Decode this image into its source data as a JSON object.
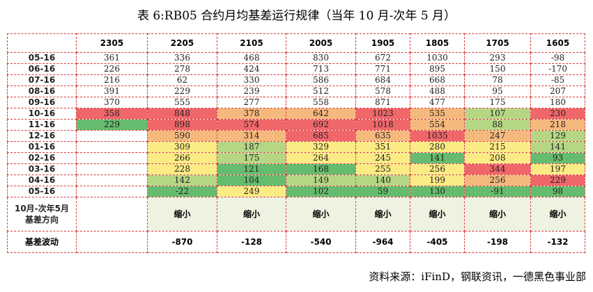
{
  "title": "表 6:RB05 合约月均基差运行规律（当年 10 月-次年 5 月）",
  "source": "资料来源：iFinD，钢联资讯，一德黑色事业部",
  "colors": {
    "red": "#f0676a",
    "orange": "#f6b97d",
    "yellow": "#faeb84",
    "lightgreen": "#b5d784",
    "green": "#66bc6e",
    "direction_bg": "#edf2e1",
    "border": "#d83a3a"
  },
  "columns": [
    "2305",
    "2205",
    "2105",
    "2005",
    "1905",
    "1805",
    "1705",
    "1605"
  ],
  "rows": [
    {
      "label": "05-16",
      "cells": [
        {
          "v": "361",
          "c": ""
        },
        {
          "v": "336",
          "c": ""
        },
        {
          "v": "468",
          "c": ""
        },
        {
          "v": "830",
          "c": ""
        },
        {
          "v": "672",
          "c": ""
        },
        {
          "v": "1030",
          "c": ""
        },
        {
          "v": "293",
          "c": ""
        },
        {
          "v": "-98",
          "c": ""
        }
      ]
    },
    {
      "label": "06-16",
      "cells": [
        {
          "v": "226",
          "c": ""
        },
        {
          "v": "278",
          "c": ""
        },
        {
          "v": "424",
          "c": ""
        },
        {
          "v": "713",
          "c": ""
        },
        {
          "v": "771",
          "c": ""
        },
        {
          "v": "895",
          "c": ""
        },
        {
          "v": "150",
          "c": ""
        },
        {
          "v": "-170",
          "c": ""
        }
      ]
    },
    {
      "label": "07-16",
      "cells": [
        {
          "v": "216",
          "c": ""
        },
        {
          "v": "62",
          "c": ""
        },
        {
          "v": "330",
          "c": ""
        },
        {
          "v": "586",
          "c": ""
        },
        {
          "v": "684",
          "c": ""
        },
        {
          "v": "668",
          "c": ""
        },
        {
          "v": "78",
          "c": ""
        },
        {
          "v": "-85",
          "c": ""
        }
      ]
    },
    {
      "label": "08-16",
      "cells": [
        {
          "v": "391",
          "c": ""
        },
        {
          "v": "229",
          "c": ""
        },
        {
          "v": "239",
          "c": ""
        },
        {
          "v": "512",
          "c": ""
        },
        {
          "v": "578",
          "c": ""
        },
        {
          "v": "488",
          "c": ""
        },
        {
          "v": "95",
          "c": ""
        },
        {
          "v": "207",
          "c": ""
        }
      ]
    },
    {
      "label": "09-16",
      "cells": [
        {
          "v": "370",
          "c": ""
        },
        {
          "v": "555",
          "c": ""
        },
        {
          "v": "277",
          "c": ""
        },
        {
          "v": "558",
          "c": ""
        },
        {
          "v": "871",
          "c": ""
        },
        {
          "v": "477",
          "c": ""
        },
        {
          "v": "175",
          "c": ""
        },
        {
          "v": "180",
          "c": ""
        }
      ]
    },
    {
      "label": "10-16",
      "cells": [
        {
          "v": "358",
          "c": "red"
        },
        {
          "v": "848",
          "c": "red"
        },
        {
          "v": "378",
          "c": "orange"
        },
        {
          "v": "642",
          "c": "orange"
        },
        {
          "v": "1023",
          "c": "red"
        },
        {
          "v": "535",
          "c": "orange"
        },
        {
          "v": "107",
          "c": "lightgreen"
        },
        {
          "v": "230",
          "c": "red"
        }
      ]
    },
    {
      "label": "11-16",
      "cells": [
        {
          "v": "229",
          "c": "green"
        },
        {
          "v": "898",
          "c": "red"
        },
        {
          "v": "574",
          "c": "red"
        },
        {
          "v": "692",
          "c": "red"
        },
        {
          "v": "1018",
          "c": "red"
        },
        {
          "v": "554",
          "c": "orange"
        },
        {
          "v": "88",
          "c": "lightgreen"
        },
        {
          "v": "218",
          "c": "orange"
        }
      ]
    },
    {
      "label": "12-16",
      "cells": [
        {
          "v": "",
          "c": ""
        },
        {
          "v": "590",
          "c": "orange"
        },
        {
          "v": "314",
          "c": "orange"
        },
        {
          "v": "685",
          "c": "red"
        },
        {
          "v": "635",
          "c": "orange"
        },
        {
          "v": "1035",
          "c": "red"
        },
        {
          "v": "247",
          "c": "orange"
        },
        {
          "v": "129",
          "c": "lightgreen"
        }
      ]
    },
    {
      "label": "01-16",
      "cells": [
        {
          "v": "",
          "c": ""
        },
        {
          "v": "309",
          "c": "yellow"
        },
        {
          "v": "187",
          "c": "lightgreen"
        },
        {
          "v": "329",
          "c": "yellow"
        },
        {
          "v": "351",
          "c": "yellow"
        },
        {
          "v": "280",
          "c": "yellow"
        },
        {
          "v": "215",
          "c": "yellow"
        },
        {
          "v": "141",
          "c": "lightgreen"
        }
      ]
    },
    {
      "label": "02-16",
      "cells": [
        {
          "v": "",
          "c": ""
        },
        {
          "v": "266",
          "c": "yellow"
        },
        {
          "v": "175",
          "c": "lightgreen"
        },
        {
          "v": "264",
          "c": "yellow"
        },
        {
          "v": "245",
          "c": "yellow"
        },
        {
          "v": "141",
          "c": "green"
        },
        {
          "v": "208",
          "c": "yellow"
        },
        {
          "v": "93",
          "c": "green"
        }
      ]
    },
    {
      "label": "03-16",
      "cells": [
        {
          "v": "",
          "c": ""
        },
        {
          "v": "228",
          "c": "yellow"
        },
        {
          "v": "121",
          "c": "green"
        },
        {
          "v": "168",
          "c": "green"
        },
        {
          "v": "255",
          "c": "yellow"
        },
        {
          "v": "256",
          "c": "yellow"
        },
        {
          "v": "344",
          "c": "red"
        },
        {
          "v": "197",
          "c": "yellow"
        }
      ]
    },
    {
      "label": "04-16",
      "cells": [
        {
          "v": "",
          "c": ""
        },
        {
          "v": "142",
          "c": "lightgreen"
        },
        {
          "v": "104",
          "c": "green"
        },
        {
          "v": "149",
          "c": "lightgreen"
        },
        {
          "v": "140",
          "c": "lightgreen"
        },
        {
          "v": "199",
          "c": "yellow"
        },
        {
          "v": "256",
          "c": "orange"
        },
        {
          "v": "229",
          "c": "red"
        }
      ]
    },
    {
      "label": "05-16",
      "cells": [
        {
          "v": "",
          "c": ""
        },
        {
          "v": "-22",
          "c": "green"
        },
        {
          "v": "249",
          "c": "yellow"
        },
        {
          "v": "102",
          "c": "green"
        },
        {
          "v": "59",
          "c": "green"
        },
        {
          "v": "130",
          "c": "green"
        },
        {
          "v": "-91",
          "c": "green"
        },
        {
          "v": "98",
          "c": "green"
        }
      ]
    }
  ],
  "direction_row": {
    "label_line1": "10月-次年5月",
    "label_line2": "基差方向",
    "values": [
      "",
      "缩小",
      "缩小",
      "缩小",
      "缩小",
      "缩小",
      "缩小",
      "缩小"
    ]
  },
  "wave_row": {
    "label": "基差波动",
    "values": [
      "",
      "-870",
      "-128",
      "-540",
      "-964",
      "-405",
      "-198",
      "-132"
    ]
  }
}
